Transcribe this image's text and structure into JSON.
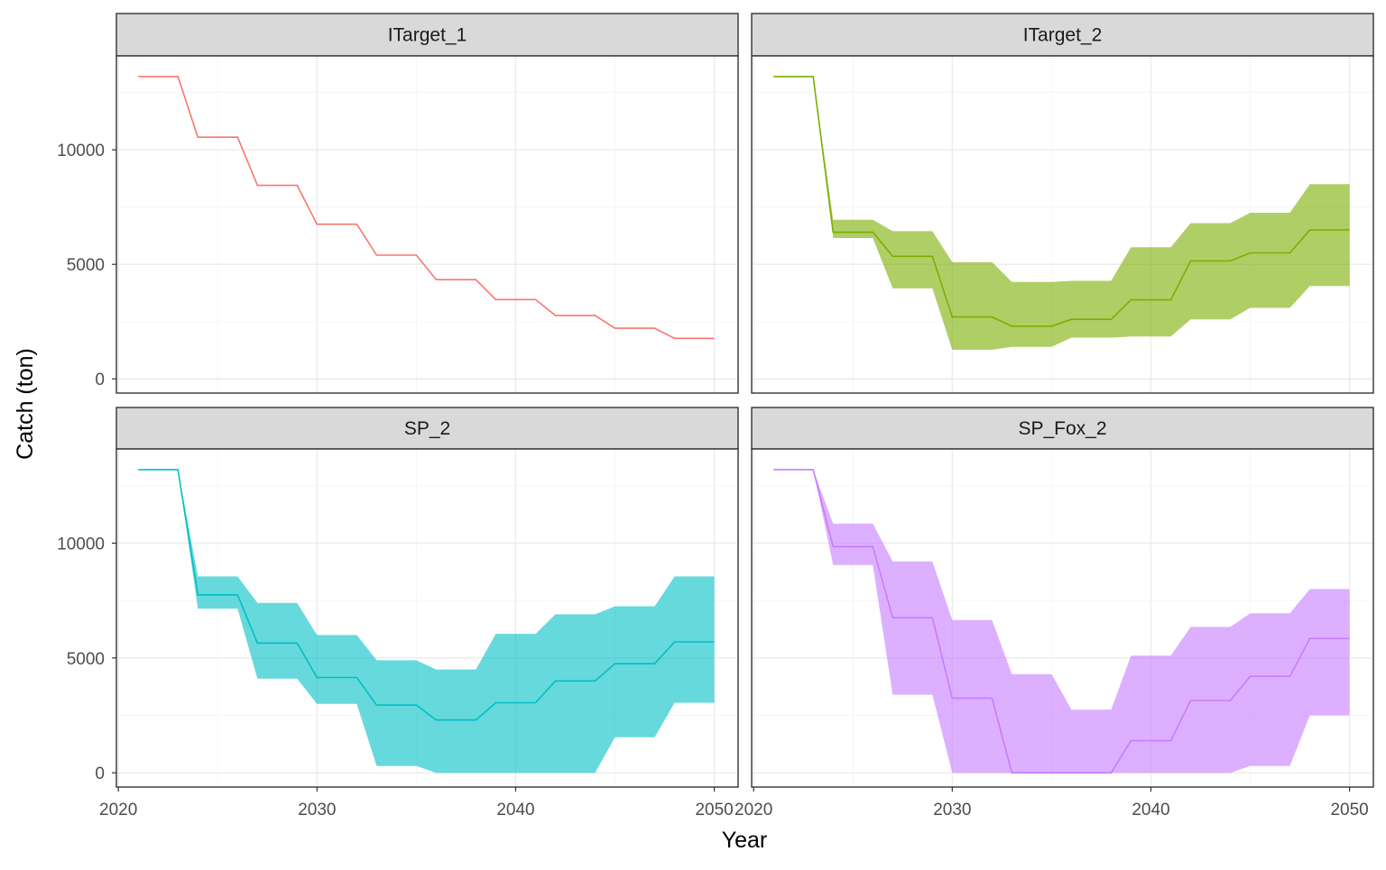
{
  "chart_data": {
    "type": "line",
    "facet_layout": "2x2",
    "xlabel": "Year",
    "ylabel": "Catch (ton)",
    "xlim": [
      2020,
      2050
    ],
    "ylim": [
      0,
      13200
    ],
    "x_ticks": [
      2020,
      2030,
      2040,
      2050
    ],
    "y_ticks": [
      0,
      5000,
      10000
    ],
    "grid": true,
    "legend": "none",
    "x": [
      2021,
      2022,
      2023,
      2024,
      2025,
      2026,
      2027,
      2028,
      2029,
      2030,
      2031,
      2032,
      2033,
      2034,
      2035,
      2036,
      2037,
      2038,
      2039,
      2040,
      2041,
      2042,
      2043,
      2044,
      2045,
      2046,
      2047,
      2048,
      2049,
      2050
    ],
    "panels": [
      {
        "title": "ITarget_1",
        "color": "#F8766D",
        "values": [
          13200,
          13200,
          13200,
          10550,
          10550,
          10550,
          8450,
          8450,
          8450,
          6750,
          6750,
          6750,
          5400,
          5400,
          5400,
          4330,
          4330,
          4330,
          3460,
          3460,
          3460,
          2770,
          2770,
          2770,
          2210,
          2210,
          2210,
          1770,
          1770,
          1770
        ],
        "lower": null,
        "upper": null
      },
      {
        "title": "ITarget_2",
        "color": "#7CAE00",
        "values": [
          13200,
          13200,
          13200,
          6400,
          6400,
          6400,
          5350,
          5350,
          5350,
          2700,
          2700,
          2700,
          2300,
          2300,
          2300,
          2600,
          2600,
          2600,
          3450,
          3450,
          3450,
          5150,
          5150,
          5150,
          5500,
          5500,
          5500,
          6500,
          6500,
          6500
        ],
        "lower": [
          13200,
          13200,
          13200,
          6150,
          6150,
          6150,
          3950,
          3950,
          3950,
          1270,
          1270,
          1270,
          1400,
          1400,
          1400,
          1800,
          1800,
          1800,
          1850,
          1850,
          1850,
          2600,
          2600,
          2600,
          3100,
          3100,
          3100,
          4050,
          4050,
          4050
        ],
        "upper": [
          13200,
          13200,
          13200,
          6950,
          6950,
          6950,
          6450,
          6450,
          6450,
          5100,
          5100,
          5100,
          4230,
          4230,
          4230,
          4280,
          4280,
          4280,
          5750,
          5750,
          5750,
          6800,
          6800,
          6800,
          7250,
          7250,
          7250,
          8500,
          8500,
          8500
        ]
      },
      {
        "title": "SP_2",
        "color": "#00BFC4",
        "values": [
          13200,
          13200,
          13200,
          7750,
          7750,
          7750,
          5650,
          5650,
          5650,
          4150,
          4150,
          4150,
          2950,
          2950,
          2950,
          2300,
          2300,
          2300,
          3050,
          3050,
          3050,
          4000,
          4000,
          4000,
          4750,
          4750,
          4750,
          5700,
          5700,
          5700
        ],
        "lower": [
          13200,
          13200,
          13200,
          7150,
          7150,
          7150,
          4100,
          4100,
          4100,
          3000,
          3000,
          3000,
          300,
          300,
          300,
          0,
          0,
          0,
          0,
          0,
          0,
          0,
          0,
          0,
          1550,
          1550,
          1550,
          3050,
          3050,
          3050
        ],
        "upper": [
          13200,
          13200,
          13200,
          8550,
          8550,
          8550,
          7400,
          7400,
          7400,
          6000,
          6000,
          6000,
          4900,
          4900,
          4900,
          4500,
          4500,
          4500,
          6050,
          6050,
          6050,
          6900,
          6900,
          6900,
          7250,
          7250,
          7250,
          8550,
          8550,
          8550
        ]
      },
      {
        "title": "SP_Fox_2",
        "color": "#C77CFF",
        "values": [
          13200,
          13200,
          13200,
          9850,
          9850,
          9850,
          6750,
          6750,
          6750,
          3250,
          3250,
          3250,
          0,
          0,
          0,
          0,
          0,
          0,
          1400,
          1400,
          1400,
          3150,
          3150,
          3150,
          4200,
          4200,
          4200,
          5850,
          5850,
          5850
        ],
        "lower": [
          13200,
          13200,
          13200,
          9050,
          9050,
          9050,
          3400,
          3400,
          3400,
          0,
          0,
          0,
          0,
          0,
          0,
          0,
          0,
          0,
          0,
          0,
          0,
          0,
          0,
          0,
          300,
          300,
          300,
          2500,
          2500,
          2500
        ],
        "upper": [
          13200,
          13200,
          13200,
          10850,
          10850,
          10850,
          9200,
          9200,
          9200,
          6650,
          6650,
          6650,
          4300,
          4300,
          4300,
          2750,
          2750,
          2750,
          5100,
          5100,
          5100,
          6350,
          6350,
          6350,
          6950,
          6950,
          6950,
          8000,
          8000,
          8000
        ]
      }
    ]
  }
}
